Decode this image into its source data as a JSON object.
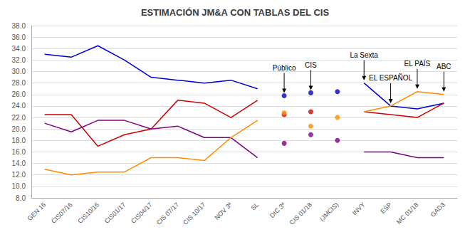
{
  "chart_data": {
    "type": "line",
    "title": "ESTIMACIÓN JM&A CON TABLAS DEL CIS",
    "categories": [
      "GEN 16",
      "CIS07/16",
      "CIS10/16",
      "CIS01/17",
      "CIS04/17",
      "CIS 07/17",
      "CIS 10/17",
      "NOV 3ª",
      "SL",
      "DIC 3ª",
      "CIS 01/18",
      "(JMCIS)",
      "INVY",
      "ESP",
      "MC 01/18",
      "GAD3"
    ],
    "series": [
      {
        "type": "line",
        "color": "#0000CC",
        "values": [
          33.0,
          32.5,
          34.5,
          32.0,
          29.0,
          28.5,
          28.0,
          28.5,
          27.0,
          null,
          null,
          null,
          null,
          null,
          null,
          null
        ]
      },
      {
        "type": "line",
        "color": "#CC0000",
        "values": [
          22.5,
          22.5,
          17.0,
          19.0,
          20.0,
          25.0,
          24.5,
          22.0,
          25.0,
          null,
          null,
          null,
          null,
          null,
          null,
          null
        ]
      },
      {
        "type": "line",
        "color": "#800080",
        "values": [
          21.0,
          19.5,
          21.5,
          21.5,
          20.0,
          20.5,
          18.5,
          18.5,
          15.0,
          null,
          null,
          null,
          null,
          null,
          null,
          null
        ]
      },
      {
        "type": "line",
        "color": "#FF8C00",
        "values": [
          13.0,
          12.0,
          12.5,
          12.5,
          15.0,
          15.0,
          14.5,
          18.5,
          21.5,
          null,
          null,
          null,
          null,
          null,
          null,
          null
        ]
      },
      {
        "type": "line",
        "color": "#0000CC",
        "values": [
          null,
          null,
          null,
          null,
          null,
          null,
          null,
          null,
          null,
          null,
          null,
          null,
          28.0,
          24.0,
          23.5,
          24.5
        ]
      },
      {
        "type": "line",
        "color": "#CC0000",
        "values": [
          null,
          null,
          null,
          null,
          null,
          null,
          null,
          null,
          null,
          null,
          null,
          null,
          23.0,
          22.5,
          22.0,
          24.5
        ]
      },
      {
        "type": "line",
        "color": "#800080",
        "values": [
          null,
          null,
          null,
          null,
          null,
          null,
          null,
          null,
          null,
          null,
          null,
          null,
          16.0,
          16.0,
          15.0,
          15.0
        ]
      },
      {
        "type": "line",
        "color": "#FF8C00",
        "values": [
          null,
          null,
          null,
          null,
          null,
          null,
          null,
          null,
          null,
          null,
          null,
          null,
          23.0,
          24.0,
          26.5,
          26.0
        ]
      },
      {
        "type": "scatter",
        "color": "#0000CC",
        "values": [
          null,
          null,
          null,
          null,
          null,
          null,
          null,
          null,
          null,
          25.8,
          26.3,
          26.5,
          null,
          null,
          null,
          null
        ]
      },
      {
        "type": "scatter",
        "color": "#CC0000",
        "values": [
          null,
          null,
          null,
          null,
          null,
          null,
          null,
          null,
          null,
          22.5,
          23.0,
          null,
          null,
          null,
          null,
          null
        ]
      },
      {
        "type": "scatter",
        "color": "#FF8C00",
        "values": [
          null,
          null,
          null,
          null,
          null,
          null,
          null,
          null,
          null,
          22.8,
          20.5,
          22.0,
          null,
          null,
          null,
          null
        ]
      },
      {
        "type": "scatter",
        "color": "#800080",
        "values": [
          null,
          null,
          null,
          null,
          null,
          null,
          null,
          null,
          null,
          17.5,
          19.0,
          18.0,
          null,
          null,
          null,
          null
        ]
      }
    ],
    "ylim": [
      8.0,
      38.0
    ],
    "yticks": [
      {
        "value": 8,
        "label": "8.0"
      },
      {
        "value": 10,
        "label": "10.0"
      },
      {
        "value": 12,
        "label": "12.0"
      },
      {
        "value": 14,
        "label": "14.0"
      },
      {
        "value": 16,
        "label": "16.0"
      },
      {
        "value": 18,
        "label": "18.0"
      },
      {
        "value": 20,
        "label": "20.0"
      },
      {
        "value": 22,
        "label": "22.0"
      },
      {
        "value": 24,
        "label": "24.0"
      },
      {
        "value": 26,
        "label": "26.0"
      },
      {
        "value": 28,
        "label": "28.0"
      },
      {
        "value": 30,
        "label": "30.0"
      },
      {
        "value": 32,
        "label": "32.0"
      },
      {
        "value": 34,
        "label": "34.0"
      },
      {
        "value": 36,
        "label": "36.0"
      },
      {
        "value": 38,
        "label": "38.0"
      }
    ],
    "grid": true,
    "annotations": [
      {
        "text": "Público",
        "x": "DIC 3ª",
        "y": 25.8
      },
      {
        "text": "CIS",
        "x": "CIS 01/18",
        "y": 26.3
      },
      {
        "text": "La Sexta",
        "x": "INVY",
        "y": 28.0
      },
      {
        "text": "EL ESPAÑOL",
        "x": "ESP",
        "y": 24.0
      },
      {
        "text": "EL PAÍS",
        "x": "MC 01/18",
        "y": 26.5
      },
      {
        "text": "ABC",
        "x": "GAD3",
        "y": 26.0
      }
    ]
  }
}
